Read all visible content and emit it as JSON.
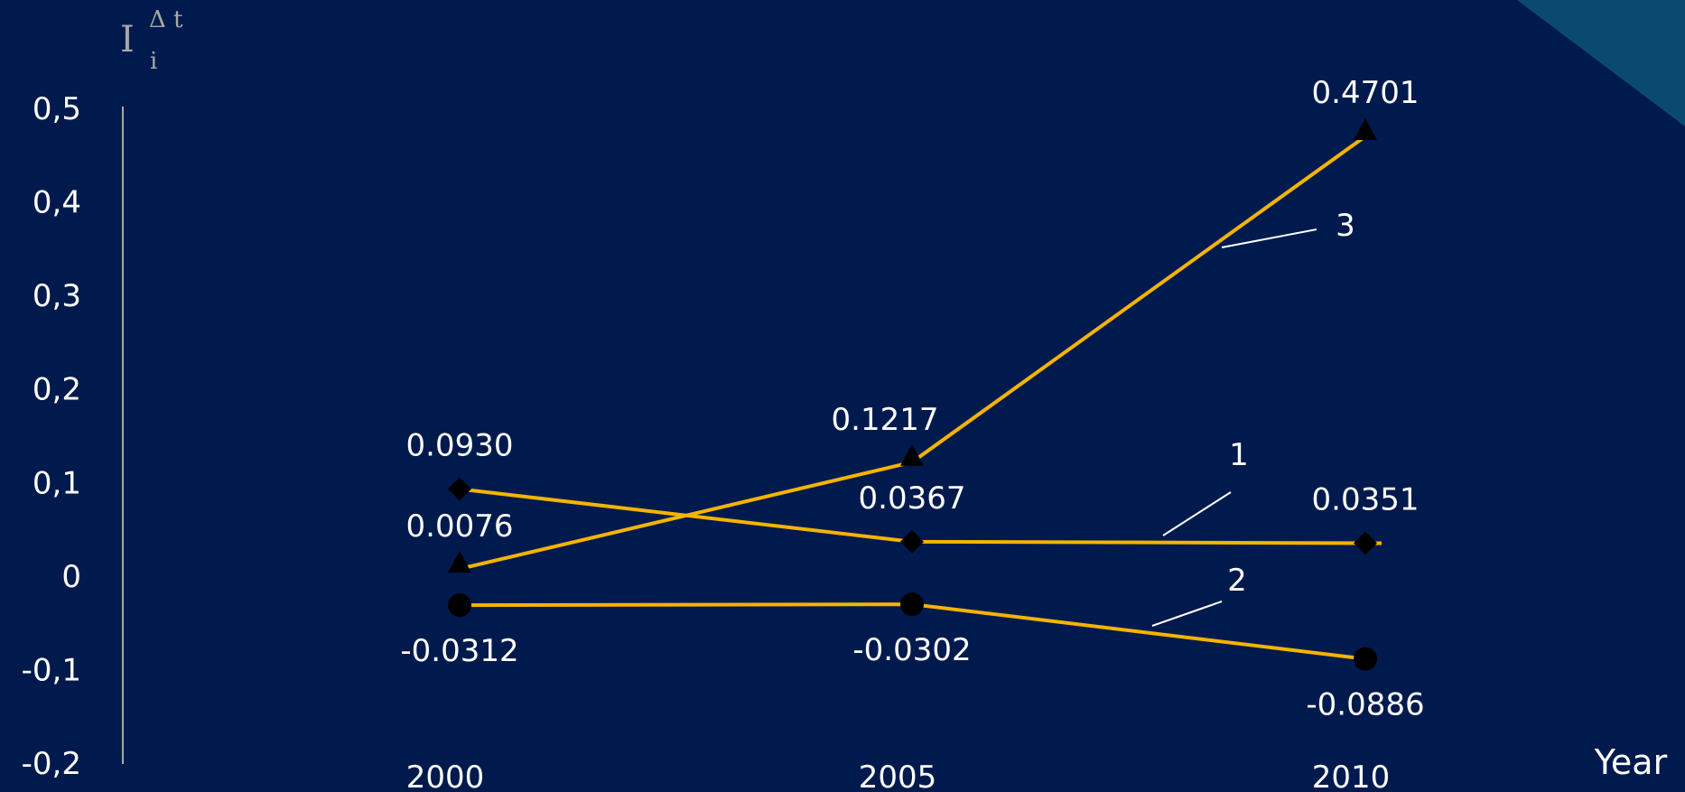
{
  "colors": {
    "background": "#001a4d",
    "line": "#f5b400",
    "marker": "#000000",
    "text": "#ffffff",
    "axis": "#a8a8a8",
    "corner_accent": "#0a4a70"
  },
  "chart_data": {
    "type": "line",
    "title": "",
    "ylabel": "I",
    "ylabel_superscript": "Δ t",
    "ylabel_subscript": "i",
    "xlabel": "Year",
    "categories": [
      "2000",
      "2005",
      "2010"
    ],
    "ylim": [
      -0.2,
      0.5
    ],
    "yticks": [
      "-0,2",
      "-0,1",
      "0",
      "0,1",
      "0,2",
      "0,3",
      "0,4",
      "0,5"
    ],
    "legend": "none",
    "grid": false,
    "series": [
      {
        "name": "1",
        "marker": "diamond",
        "values": [
          0.093,
          0.0367,
          0.0351
        ],
        "labels": [
          "0.0930",
          "0.0367",
          "0.0351"
        ]
      },
      {
        "name": "2",
        "marker": "circle",
        "values": [
          -0.0312,
          -0.0302,
          -0.0886
        ],
        "labels": [
          "-0.0312",
          "-0.0302",
          "-0.0886"
        ]
      },
      {
        "name": "3",
        "marker": "triangle",
        "values": [
          0.0076,
          0.1217,
          0.4701
        ],
        "labels": [
          "0.0076",
          "0.1217",
          "0.4701"
        ]
      }
    ]
  }
}
